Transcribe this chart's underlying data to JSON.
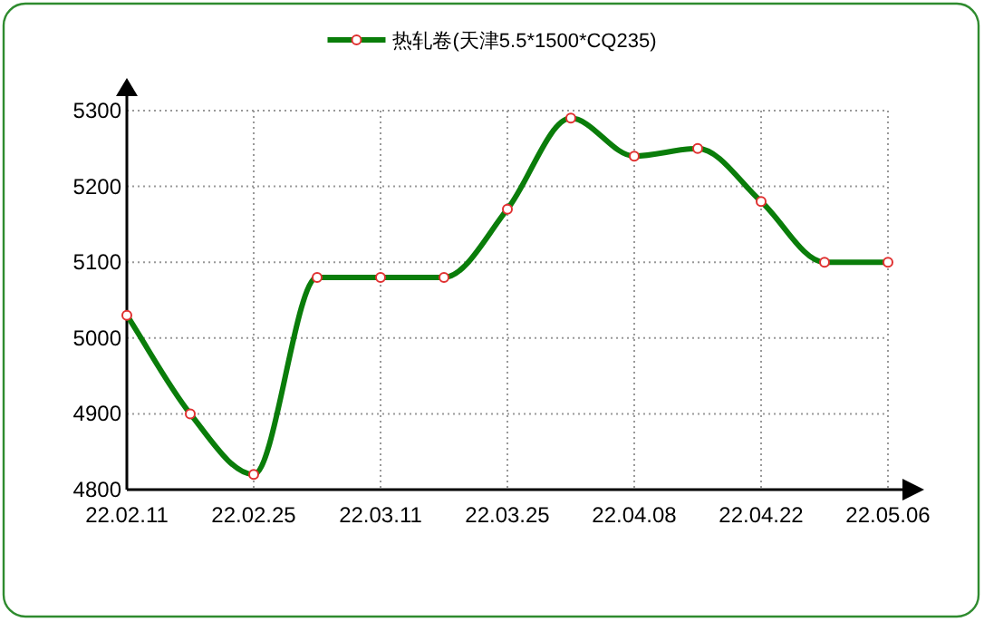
{
  "chart_data": {
    "type": "line",
    "categories": [
      "22.02.11",
      null,
      "22.02.25",
      null,
      "22.03.11",
      null,
      "22.03.25",
      null,
      "22.04.08",
      null,
      "22.04.22",
      null,
      "22.05.06"
    ],
    "series": [
      {
        "name": "热轧卷(天津5.5*1500*CQ235)",
        "color": "#0a7d0a",
        "values": [
          5030,
          4900,
          4820,
          5080,
          5080,
          5080,
          5170,
          5290,
          5240,
          5250,
          5180,
          5100,
          5100
        ]
      }
    ],
    "ylim": [
      4800,
      5300
    ],
    "yticks": [
      4800,
      4900,
      5000,
      5100,
      5200,
      5300
    ],
    "grid": true,
    "legend": "top",
    "marker": "circle",
    "line_style": "solid"
  }
}
